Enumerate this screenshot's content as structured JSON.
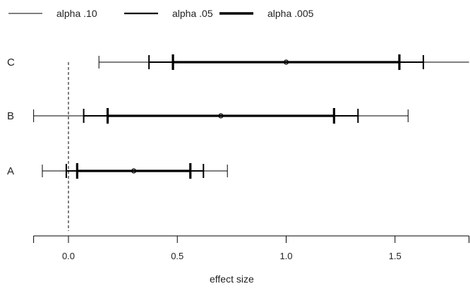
{
  "chart_data": {
    "type": "interval",
    "xlabel": "effect size",
    "xlim": [
      -0.16,
      1.84
    ],
    "x_ticks": [
      0.0,
      0.5,
      1.0,
      1.5
    ],
    "x_tick_labels": [
      "0.0",
      "0.5",
      "1.0",
      "1.5"
    ],
    "reference_line": {
      "x": 0,
      "style": "dashed"
    },
    "legend": [
      {
        "label": "alpha .10",
        "weight": 1
      },
      {
        "label": "alpha .05",
        "weight": 2
      },
      {
        "label": "alpha .005",
        "weight": 3
      }
    ],
    "legend_position": "top-left",
    "rows": [
      {
        "label": "C",
        "estimate": 1.0,
        "intervals": [
          {
            "alpha": ".10",
            "low": 0.14,
            "high": 1.84
          },
          {
            "alpha": ".05",
            "low": 0.37,
            "high": 1.63
          },
          {
            "alpha": ".005",
            "low": 0.48,
            "high": 1.52
          }
        ]
      },
      {
        "label": "B",
        "estimate": 0.7,
        "intervals": [
          {
            "alpha": ".10",
            "low": -0.16,
            "high": 1.56
          },
          {
            "alpha": ".05",
            "low": 0.07,
            "high": 1.33
          },
          {
            "alpha": ".005",
            "low": 0.18,
            "high": 1.22
          }
        ]
      },
      {
        "label": "A",
        "estimate": 0.3,
        "intervals": [
          {
            "alpha": ".10",
            "low": -0.12,
            "high": 0.73
          },
          {
            "alpha": ".05",
            "low": -0.01,
            "high": 0.62
          },
          {
            "alpha": ".005",
            "low": 0.04,
            "high": 0.56
          }
        ]
      }
    ]
  }
}
